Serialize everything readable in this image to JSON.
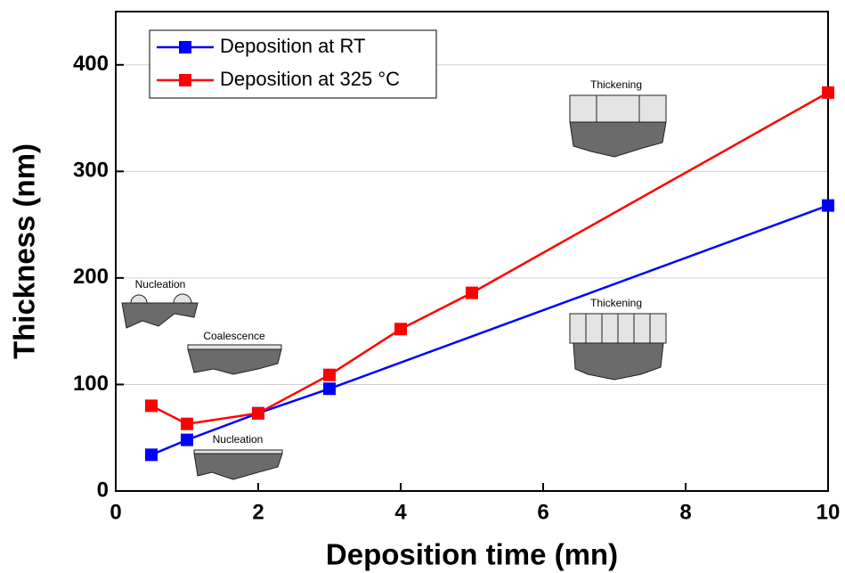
{
  "chart_data": {
    "type": "line",
    "xlabel": "Deposition time (mn)",
    "ylabel": "Thickness (nm)",
    "xlim": [
      0,
      10
    ],
    "xticks": [
      0,
      2,
      4,
      6,
      8,
      10
    ],
    "ylim": [
      0,
      450
    ],
    "yticks": [
      0,
      100,
      200,
      300,
      400
    ],
    "grid": true,
    "legend": "upper left",
    "series": [
      {
        "name": "Deposition at RT",
        "color": "#0000ff",
        "x": [
          0.5,
          1,
          2,
          3,
          10
        ],
        "values": [
          34,
          48,
          73,
          96,
          268
        ]
      },
      {
        "name": "Deposition at 325 °C",
        "color": "#ff0000",
        "x": [
          0.5,
          1,
          2,
          3,
          4,
          5,
          10
        ],
        "values": [
          80,
          63,
          73,
          109,
          152,
          186,
          374
        ]
      }
    ],
    "annotations": [
      "Nucleation",
      "Coalescence",
      "Nucleation",
      "Thickening",
      "Thickening"
    ]
  }
}
